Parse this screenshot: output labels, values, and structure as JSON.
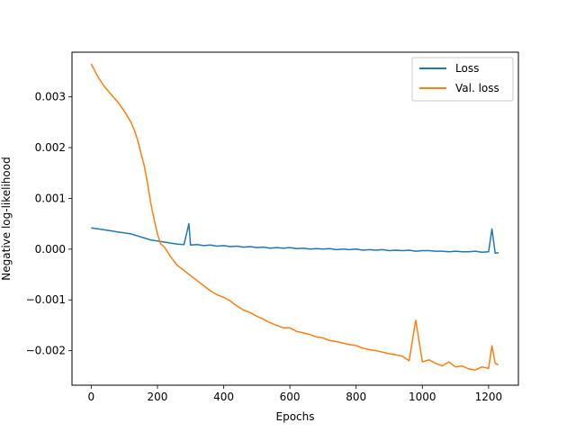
{
  "chart_data": {
    "type": "line",
    "xlabel": "Epochs",
    "ylabel": "Negative log-likelihood",
    "xlim": [
      -58,
      1290
    ],
    "ylim": [
      -0.00268,
      0.00388
    ],
    "xticks": [
      0,
      200,
      400,
      600,
      800,
      1000,
      1200
    ],
    "xtick_labels": [
      "0",
      "200",
      "400",
      "600",
      "800",
      "1000",
      "1200"
    ],
    "yticks": [
      -0.002,
      -0.001,
      0.0,
      0.001,
      0.002,
      0.003
    ],
    "ytick_labels": [
      "−0.002",
      "−0.001",
      "0.000",
      "0.001",
      "0.002",
      "0.003"
    ],
    "grid": false,
    "legend_position": "top-right",
    "series": [
      {
        "name": "Loss",
        "color": "#1f77b4",
        "x": [
          0,
          20,
          40,
          60,
          80,
          100,
          120,
          140,
          160,
          180,
          200,
          220,
          240,
          260,
          280,
          295,
          300,
          320,
          340,
          360,
          380,
          400,
          420,
          440,
          460,
          480,
          500,
          520,
          540,
          560,
          580,
          600,
          620,
          640,
          660,
          680,
          700,
          720,
          740,
          760,
          780,
          800,
          820,
          840,
          860,
          880,
          900,
          920,
          940,
          960,
          980,
          1000,
          1020,
          1040,
          1060,
          1080,
          1100,
          1120,
          1140,
          1160,
          1180,
          1200,
          1210,
          1220,
          1230
        ],
        "y": [
          0.00042,
          0.0004,
          0.00038,
          0.00036,
          0.00034,
          0.00032,
          0.0003,
          0.00026,
          0.00022,
          0.00018,
          0.00016,
          0.00014,
          0.00012,
          0.0001,
          9e-05,
          0.0005,
          8e-05,
          9e-05,
          7e-05,
          8e-05,
          6e-05,
          7e-05,
          5e-05,
          6e-05,
          4e-05,
          5e-05,
          3e-05,
          4e-05,
          2e-05,
          3e-05,
          2e-05,
          3e-05,
          1e-05,
          2e-05,
          0.0,
          1e-05,
          0.0,
          1e-05,
          -1e-05,
          0.0,
          -1e-05,
          0.0,
          -2e-05,
          -1e-05,
          -2e-05,
          -1e-05,
          -3e-05,
          -2e-05,
          -3e-05,
          -2e-05,
          -4e-05,
          -3e-05,
          -3e-05,
          -4e-05,
          -4e-05,
          -5e-05,
          -4e-05,
          -5e-05,
          -5e-05,
          -4e-05,
          -6e-05,
          -5e-05,
          0.0004,
          -8e-05,
          -7e-05
        ]
      },
      {
        "name": "Val. loss",
        "color": "#ff7f0e",
        "x": [
          0,
          20,
          40,
          60,
          80,
          100,
          120,
          130,
          140,
          150,
          160,
          170,
          180,
          190,
          200,
          210,
          220,
          230,
          240,
          260,
          280,
          300,
          320,
          340,
          360,
          380,
          400,
          420,
          440,
          460,
          480,
          500,
          520,
          540,
          560,
          580,
          600,
          620,
          640,
          660,
          680,
          700,
          720,
          740,
          760,
          780,
          800,
          820,
          840,
          860,
          880,
          900,
          920,
          940,
          960,
          980,
          1000,
          1020,
          1040,
          1060,
          1080,
          1100,
          1120,
          1140,
          1160,
          1180,
          1200,
          1210,
          1220,
          1230
        ],
        "y": [
          0.00365,
          0.0034,
          0.0032,
          0.00305,
          0.0029,
          0.00272,
          0.0025,
          0.00235,
          0.00215,
          0.0019,
          0.00165,
          0.0013,
          0.0009,
          0.00058,
          0.0003,
          0.0001,
          5e-05,
          -5e-05,
          -0.00015,
          -0.00032,
          -0.00042,
          -0.00052,
          -0.00062,
          -0.00072,
          -0.00082,
          -0.0009,
          -0.00095,
          -0.00102,
          -0.00112,
          -0.0012,
          -0.00125,
          -0.00132,
          -0.00138,
          -0.00145,
          -0.0015,
          -0.00155,
          -0.00155,
          -0.00162,
          -0.00165,
          -0.00168,
          -0.00173,
          -0.00175,
          -0.0018,
          -0.00182,
          -0.00185,
          -0.00188,
          -0.0019,
          -0.00195,
          -0.00198,
          -0.002,
          -0.00203,
          -0.00206,
          -0.00208,
          -0.00211,
          -0.0022,
          -0.0014,
          -0.00222,
          -0.00218,
          -0.00225,
          -0.0023,
          -0.00222,
          -0.00232,
          -0.0023,
          -0.00236,
          -0.00238,
          -0.00232,
          -0.00235,
          -0.0019,
          -0.00225,
          -0.00228
        ]
      }
    ]
  }
}
